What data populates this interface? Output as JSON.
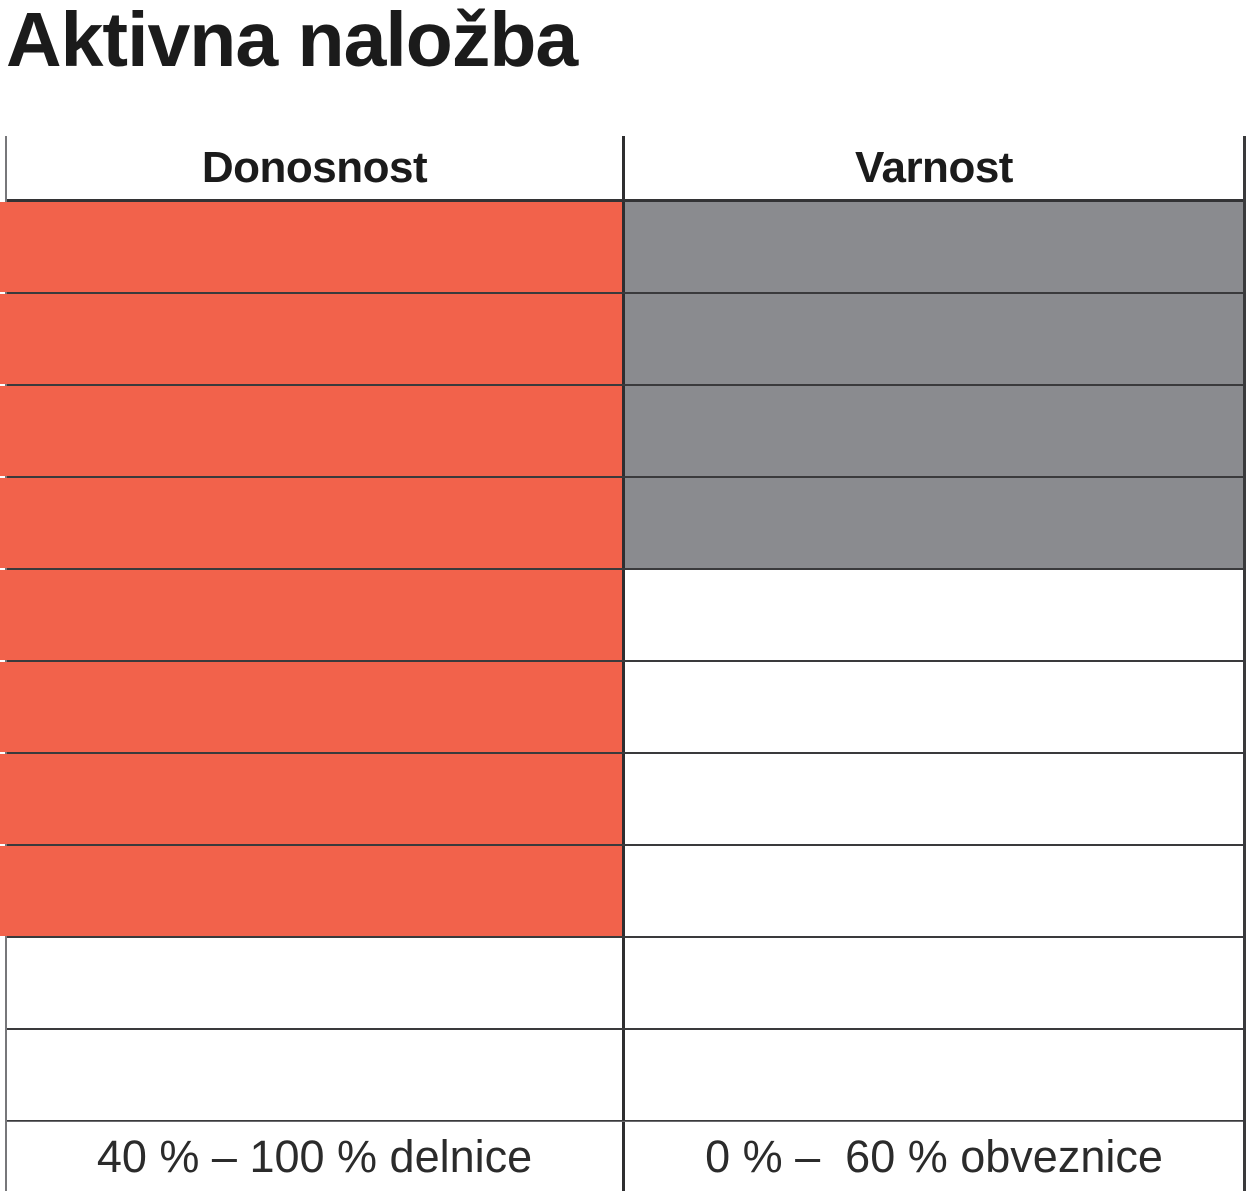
{
  "title": "Aktivna naložba",
  "table": {
    "rows_total": 10,
    "columns": [
      {
        "id": "donosnost",
        "label": "Donosnost",
        "filled_rows": 8,
        "fill_color": "#F2624B",
        "footer_label": "40 % – 100 % delnice"
      },
      {
        "id": "varnost",
        "label": "Varnost",
        "filled_rows": 4,
        "fill_color": "#8A8B8F",
        "footer_label": "0 % –  60 % obveznice"
      }
    ]
  },
  "chart_data": {
    "type": "table",
    "title": "Aktivna naložba",
    "categories": [
      "Donosnost",
      "Varnost"
    ],
    "series": [
      {
        "name": "filled_cells_out_of_10",
        "values": [
          8,
          4
        ]
      }
    ],
    "row_count": 10,
    "fill_direction": "top-down",
    "ylim": [
      0,
      10
    ],
    "annotations": [
      "40 % – 100 % delnice",
      "0 % –  60 % obveznice"
    ],
    "colors": [
      "#F2624B",
      "#8A8B8F"
    ],
    "legend": "none",
    "grid": true
  },
  "colors": {
    "accent_orange": "#F2624B",
    "neutral_gray": "#8A8B8F",
    "grid_line": "#3A3A3C",
    "outer_border": "#77777A",
    "text": "#1B1B1B"
  }
}
